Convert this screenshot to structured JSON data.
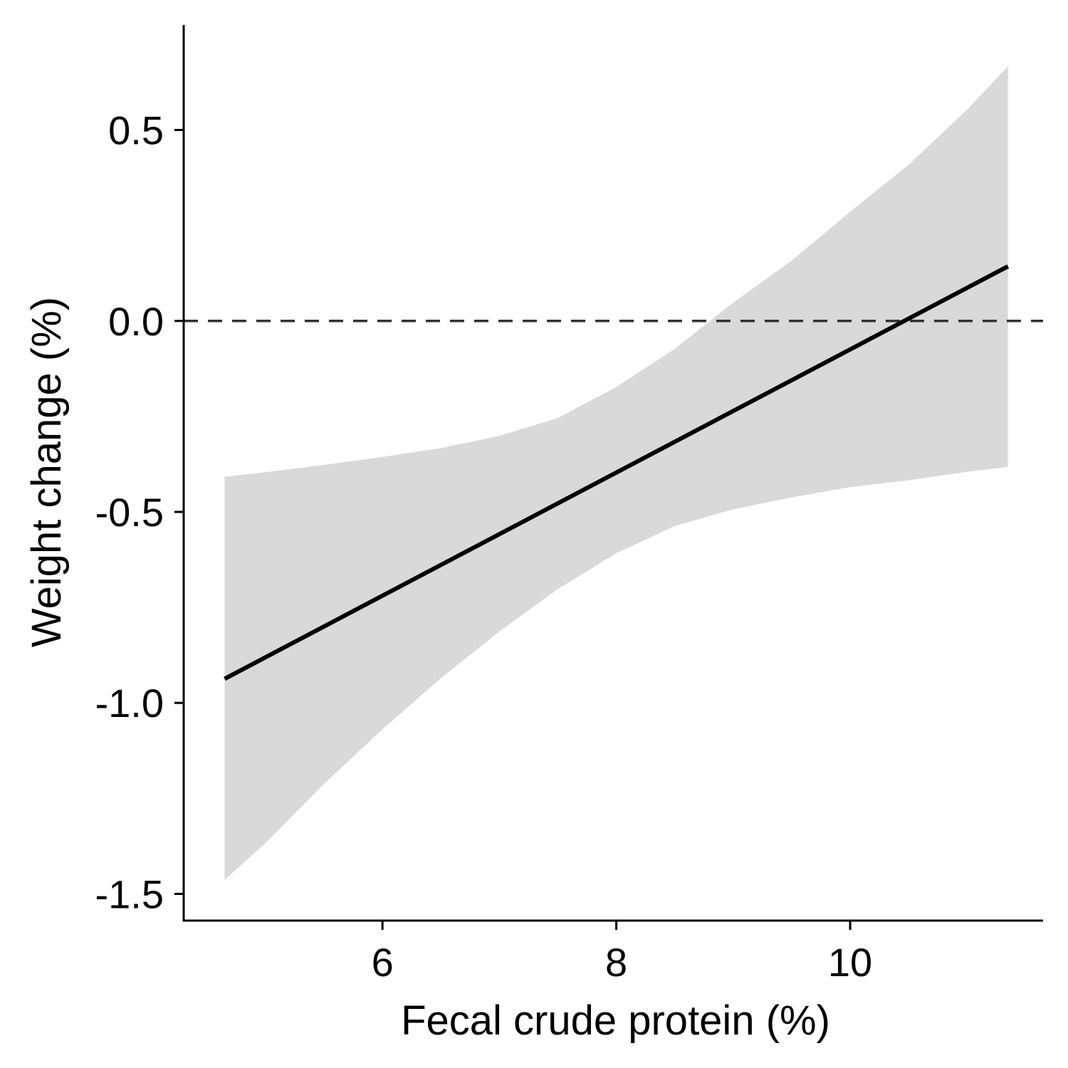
{
  "chart_data": {
    "type": "line",
    "title": "",
    "xlabel": "Fecal crude protein (%)",
    "ylabel": "Weight change (%)",
    "xlim": [
      4.3,
      11.65
    ],
    "ylim": [
      -1.57,
      0.775
    ],
    "x_ticks": [
      6,
      8,
      10
    ],
    "x_tick_labels": [
      "6",
      "8",
      "10"
    ],
    "y_ticks": [
      0.5,
      0.0,
      -0.5,
      -1.0,
      -1.5
    ],
    "y_tick_labels": [
      "0.5",
      "0.0",
      "-0.5",
      "-1.0",
      "-1.5"
    ],
    "reference_line": {
      "y": 0.0,
      "style": "dashed"
    },
    "grid": false,
    "legend": "none",
    "series": [
      {
        "kind": "fit",
        "x": [
          4.65,
          11.35
        ],
        "y": [
          -0.937,
          0.143
        ]
      }
    ],
    "confidence_band": {
      "x": [
        4.65,
        5.0,
        5.5,
        6.0,
        6.5,
        7.0,
        7.5,
        8.0,
        8.5,
        9.0,
        9.5,
        10.0,
        10.5,
        11.0,
        11.35
      ],
      "upper": [
        -0.408,
        -0.396,
        -0.377,
        -0.356,
        -0.333,
        -0.301,
        -0.254,
        -0.173,
        -0.073,
        0.048,
        0.158,
        0.286,
        0.409,
        0.553,
        0.667
      ],
      "lower": [
        -1.463,
        -1.367,
        -1.212,
        -1.069,
        -0.935,
        -0.813,
        -0.702,
        -0.608,
        -0.537,
        -0.493,
        -0.462,
        -0.435,
        -0.417,
        -0.395,
        -0.382
      ]
    },
    "colors": {
      "line": "#000000",
      "band": "#d9d9d9",
      "reference_line": "#333333",
      "axis": "#000000"
    }
  }
}
